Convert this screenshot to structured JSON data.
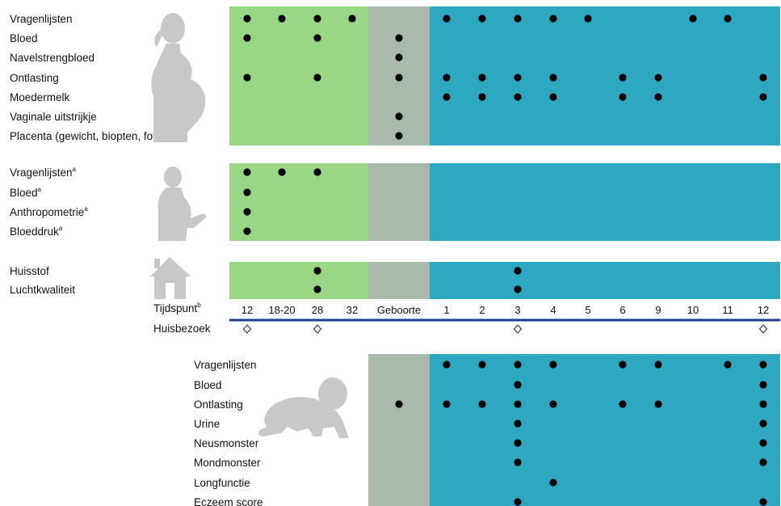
{
  "timepoint_label": "Tijdspunt",
  "timepoint_footnote": "b",
  "home_visit_label": "Huisbezoek",
  "timepoints": [
    "12",
    "18-20",
    "28",
    "32",
    "Geboorte",
    "1",
    "2",
    "3",
    "4",
    "5",
    "6",
    "9",
    "10",
    "11",
    "12"
  ],
  "home_visits": [
    0,
    2,
    7,
    14
  ],
  "colors": {
    "pregnancy": "#99d685",
    "birth": "#a9b9ab",
    "postnatal": "#2ea8c0",
    "silhouette": "#c8c8c8",
    "axis": "#1b3e95"
  },
  "sections": [
    {
      "id": "mother",
      "icon": "pregnant-woman-icon",
      "rows": [
        {
          "label": "Vragenlijsten",
          "sup": "",
          "cols": [
            0,
            1,
            2,
            3,
            5,
            6,
            7,
            8,
            9,
            12,
            13
          ]
        },
        {
          "label": "Bloed",
          "sup": "",
          "cols": [
            0,
            2,
            4
          ]
        },
        {
          "label": "Navelstrengbloed",
          "sup": "",
          "cols": [
            4
          ]
        },
        {
          "label": "Ontlasting",
          "sup": "",
          "cols": [
            0,
            2,
            4,
            5,
            6,
            7,
            8,
            10,
            11,
            14
          ]
        },
        {
          "label": "Moedermelk",
          "sup": "",
          "cols": [
            5,
            6,
            7,
            8,
            10,
            11,
            14
          ]
        },
        {
          "label": "Vaginale uitstrijkje",
          "sup": "",
          "cols": [
            4
          ]
        },
        {
          "label": "Placenta (gewicht, biopten, foto)",
          "sup": "",
          "cols": [
            4
          ]
        }
      ]
    },
    {
      "id": "father",
      "icon": "man-icon",
      "rows": [
        {
          "label": "Vragenlijsten",
          "sup": "a",
          "cols": [
            0,
            1,
            2
          ]
        },
        {
          "label": "Bloed",
          "sup": "a",
          "cols": [
            0
          ]
        },
        {
          "label": "Anthropometrie",
          "sup": "a",
          "cols": [
            0
          ]
        },
        {
          "label": "Bloeddruk",
          "sup": "a",
          "cols": [
            0
          ]
        }
      ]
    },
    {
      "id": "home",
      "icon": "house-icon",
      "rows": [
        {
          "label": "Huisstof",
          "sup": "",
          "cols": [
            2,
            7
          ]
        },
        {
          "label": "Luchtkwaliteit",
          "sup": "",
          "cols": [
            2,
            7
          ]
        }
      ]
    },
    {
      "id": "child",
      "icon": "crawling-baby-icon",
      "rows": [
        {
          "label": "Vragenlijsten",
          "sup": "",
          "cols": [
            5,
            6,
            7,
            8,
            10,
            11,
            13,
            14
          ]
        },
        {
          "label": "Bloed",
          "sup": "",
          "cols": [
            7,
            14
          ]
        },
        {
          "label": "Ontlasting",
          "sup": "",
          "cols": [
            4,
            5,
            6,
            7,
            8,
            10,
            11,
            14
          ]
        },
        {
          "label": "Urine",
          "sup": "",
          "cols": [
            7,
            14
          ]
        },
        {
          "label": "Neusmonster",
          "sup": "",
          "cols": [
            7,
            14
          ]
        },
        {
          "label": "Mondmonster",
          "sup": "",
          "cols": [
            7,
            14
          ]
        },
        {
          "label": "Longfunctie",
          "sup": "",
          "cols": [
            8
          ]
        },
        {
          "label": "Eczeem score",
          "sup": "",
          "cols": [
            7,
            14
          ]
        }
      ]
    }
  ]
}
